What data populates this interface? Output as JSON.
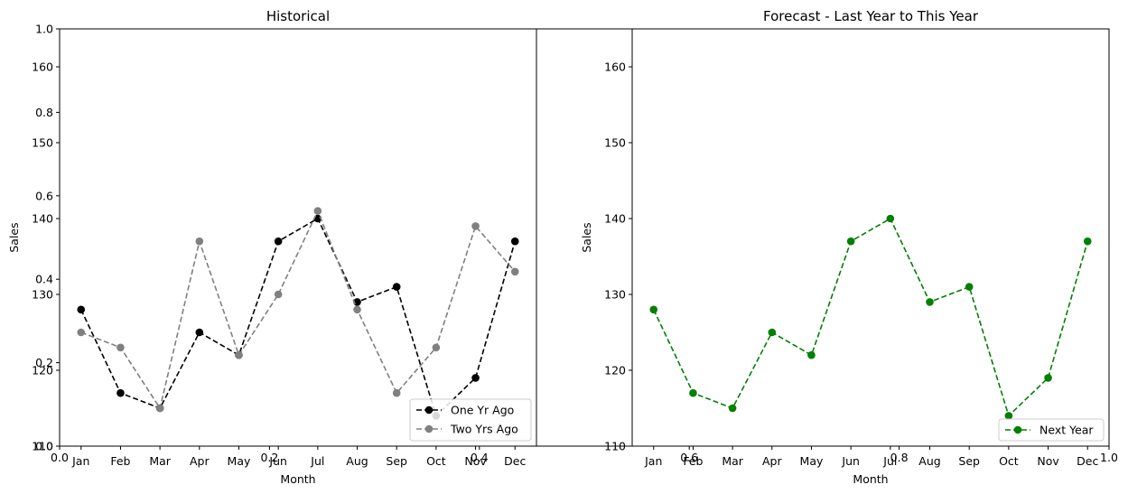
{
  "months": [
    "Jan",
    "Feb",
    "Mar",
    "Apr",
    "May",
    "Jun",
    "Jul",
    "Aug",
    "Sep",
    "Oct",
    "Nov",
    "Dec"
  ],
  "background_axis": {
    "ticks": [
      "0.0",
      "0.2",
      "0.4",
      "0.6",
      "0.8",
      "1.0"
    ]
  },
  "chart_data": [
    {
      "type": "line",
      "title": "Historical",
      "xlabel": "Month",
      "ylabel": "Sales",
      "ylim": [
        110,
        165
      ],
      "yticks": [
        110,
        120,
        130,
        140,
        150,
        160
      ],
      "grid": false,
      "legend_position": "bottom-right",
      "categories": [
        "Jan",
        "Feb",
        "Mar",
        "Apr",
        "May",
        "Jun",
        "Jul",
        "Aug",
        "Sep",
        "Oct",
        "Nov",
        "Dec"
      ],
      "series": [
        {
          "name": "One Yr Ago",
          "color": "#000000",
          "style": "dashed",
          "marker": "circle",
          "values": [
            128,
            117,
            115,
            125,
            122,
            137,
            140,
            129,
            131,
            114,
            119,
            137
          ]
        },
        {
          "name": "Two Yrs Ago",
          "color": "#808080",
          "style": "dashed",
          "marker": "circle",
          "values": [
            125,
            123,
            115,
            137,
            122,
            130,
            141,
            128,
            117,
            123,
            139,
            133
          ]
        }
      ]
    },
    {
      "type": "line",
      "title": "Forecast - Last Year to This Year",
      "xlabel": "Month",
      "ylabel": "Sales",
      "ylim": [
        110,
        165
      ],
      "yticks": [
        110,
        120,
        130,
        140,
        150,
        160
      ],
      "grid": false,
      "legend_position": "bottom-right",
      "categories": [
        "Jan",
        "Feb",
        "Mar",
        "Apr",
        "May",
        "Jun",
        "Jul",
        "Aug",
        "Sep",
        "Oct",
        "Nov",
        "Dec"
      ],
      "series": [
        {
          "name": "Next Year",
          "color": "#008000",
          "style": "dashed",
          "marker": "circle",
          "values": [
            128,
            117,
            115,
            125,
            122,
            137,
            140,
            129,
            131,
            114,
            119,
            137
          ]
        }
      ]
    }
  ]
}
